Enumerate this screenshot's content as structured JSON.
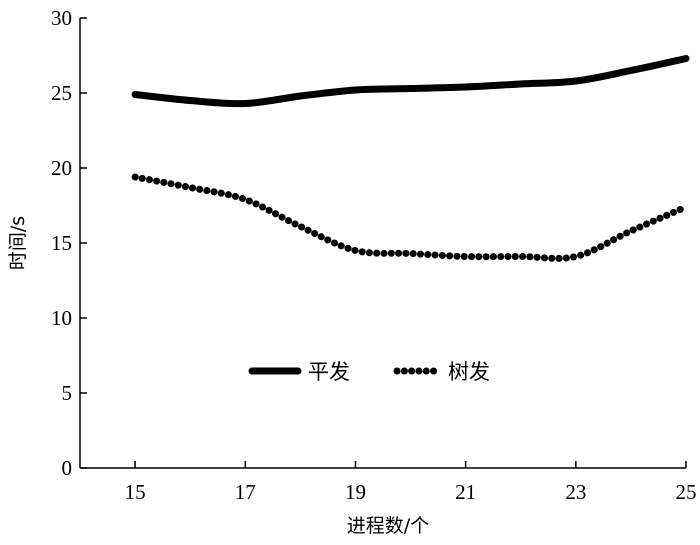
{
  "chart_data": {
    "type": "line",
    "title": "",
    "xlabel": "进程数/个",
    "ylabel": "时间/s",
    "x": [
      15,
      16,
      17,
      18,
      19,
      20,
      21,
      22,
      23,
      24,
      25
    ],
    "xticks": [
      15,
      17,
      19,
      21,
      23,
      25
    ],
    "yticks": [
      0,
      5,
      10,
      15,
      20,
      25,
      30
    ],
    "xlim": [
      14,
      25
    ],
    "ylim": [
      0,
      30
    ],
    "grid": false,
    "legend_position": "center",
    "series": [
      {
        "name": "平发",
        "style": "solid",
        "color": "#000000",
        "values": [
          24.9,
          24.5,
          24.3,
          24.8,
          25.2,
          25.3,
          25.4,
          25.6,
          25.8,
          26.5,
          27.3
        ]
      },
      {
        "name": "树发",
        "style": "dotted",
        "color": "#000000",
        "values": [
          19.4,
          18.7,
          17.9,
          16.1,
          14.5,
          14.3,
          14.1,
          14.1,
          14.1,
          15.8,
          17.4
        ]
      }
    ]
  }
}
